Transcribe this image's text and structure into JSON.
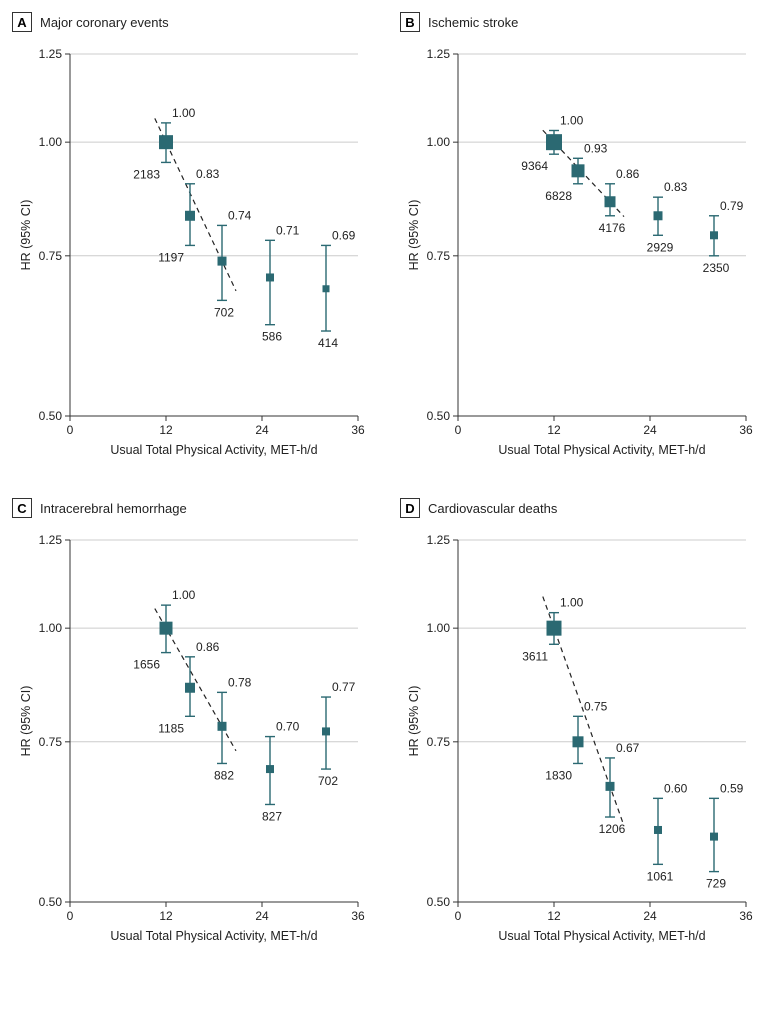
{
  "figure": {
    "background_color": "#ffffff",
    "marker_color": "#2b6972",
    "grid_color": "#cccccc",
    "axis_color": "#333333",
    "font_family": "Arial",
    "layout": "2x2",
    "xaxis": {
      "title": "Usual Total Physical Activity, MET-h/d",
      "min": 0,
      "max": 36,
      "ticks": [
        0,
        12,
        24,
        36
      ]
    },
    "yaxis": {
      "title": "HR (95% CI)",
      "scale": "log",
      "min": 0.5,
      "max": 1.25,
      "ticks": [
        0.5,
        0.75,
        1.0,
        1.25
      ]
    },
    "trend_line": {
      "dash": "5 4",
      "covers_points": [
        0,
        1,
        2
      ]
    },
    "panels": [
      {
        "letter": "A",
        "title": "Major coronary events",
        "points": [
          {
            "x": 12,
            "hr": 1.0,
            "lo": 0.95,
            "hi": 1.05,
            "n": 2183,
            "size": 14
          },
          {
            "x": 15,
            "hr": 0.83,
            "lo": 0.77,
            "hi": 0.9,
            "n": 1197,
            "size": 10
          },
          {
            "x": 19,
            "hr": 0.74,
            "lo": 0.67,
            "hi": 0.81,
            "n": 702,
            "size": 9
          },
          {
            "x": 25,
            "hr": 0.71,
            "lo": 0.63,
            "hi": 0.78,
            "n": 586,
            "size": 8
          },
          {
            "x": 32,
            "hr": 0.69,
            "lo": 0.62,
            "hi": 0.77,
            "n": 414,
            "size": 7
          }
        ]
      },
      {
        "letter": "B",
        "title": "Ischemic stroke",
        "points": [
          {
            "x": 12,
            "hr": 1.0,
            "lo": 0.97,
            "hi": 1.03,
            "n": 9364,
            "size": 16
          },
          {
            "x": 15,
            "hr": 0.93,
            "lo": 0.9,
            "hi": 0.96,
            "n": 6828,
            "size": 13
          },
          {
            "x": 19,
            "hr": 0.86,
            "lo": 0.83,
            "hi": 0.9,
            "n": 4176,
            "size": 11
          },
          {
            "x": 25,
            "hr": 0.83,
            "lo": 0.79,
            "hi": 0.87,
            "n": 2929,
            "size": 9
          },
          {
            "x": 32,
            "hr": 0.79,
            "lo": 0.75,
            "hi": 0.83,
            "n": 2350,
            "size": 8
          }
        ]
      },
      {
        "letter": "C",
        "title": "Intracerebral hemorrhage",
        "points": [
          {
            "x": 12,
            "hr": 1.0,
            "lo": 0.94,
            "hi": 1.06,
            "n": 1656,
            "size": 13
          },
          {
            "x": 15,
            "hr": 0.86,
            "lo": 0.8,
            "hi": 0.93,
            "n": 1185,
            "size": 10
          },
          {
            "x": 19,
            "hr": 0.78,
            "lo": 0.71,
            "hi": 0.85,
            "n": 882,
            "size": 9
          },
          {
            "x": 25,
            "hr": 0.7,
            "lo": 0.64,
            "hi": 0.76,
            "n": 827,
            "size": 8
          },
          {
            "x": 32,
            "hr": 0.77,
            "lo": 0.7,
            "hi": 0.84,
            "n": 702,
            "size": 8
          }
        ]
      },
      {
        "letter": "D",
        "title": "Cardiovascular deaths",
        "points": [
          {
            "x": 12,
            "hr": 1.0,
            "lo": 0.96,
            "hi": 1.04,
            "n": 3611,
            "size": 15
          },
          {
            "x": 15,
            "hr": 0.75,
            "lo": 0.71,
            "hi": 0.8,
            "n": 1830,
            "size": 11
          },
          {
            "x": 19,
            "hr": 0.67,
            "lo": 0.62,
            "hi": 0.72,
            "n": 1206,
            "size": 9
          },
          {
            "x": 25,
            "hr": 0.6,
            "lo": 0.55,
            "hi": 0.65,
            "n": 1061,
            "size": 8
          },
          {
            "x": 32,
            "hr": 0.59,
            "lo": 0.54,
            "hi": 0.65,
            "n": 729,
            "size": 8
          }
        ]
      }
    ]
  }
}
